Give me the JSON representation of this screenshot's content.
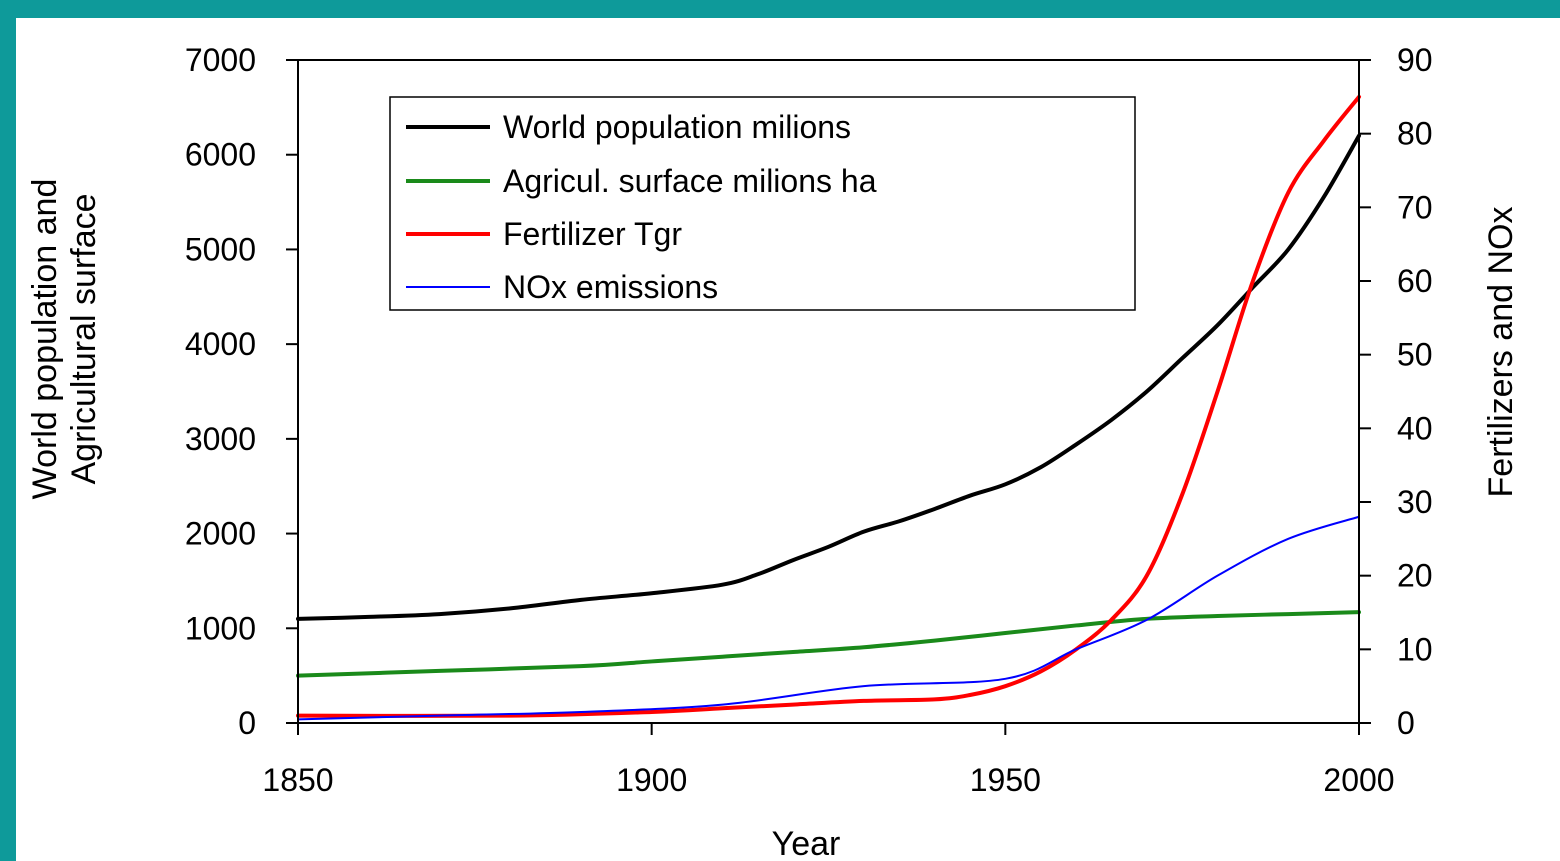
{
  "colors": {
    "frame": "#0e9a9a",
    "population": "#000000",
    "agricultural": "#1a8a1a",
    "fertilizer": "#ff0000",
    "nox": "#0000ff"
  },
  "chart_data": {
    "type": "line",
    "xlabel": "Year",
    "ylabel_left": [
      "World population and",
      "Agricultural surface"
    ],
    "ylabel_right": "Fertilizers and NOx",
    "xlim": [
      1850,
      2000
    ],
    "ylim_left": [
      0,
      7000
    ],
    "ylim_right": [
      0,
      90
    ],
    "x_ticks": [
      1850,
      1900,
      1950,
      2000
    ],
    "y_left_ticks": [
      0,
      1000,
      2000,
      3000,
      4000,
      5000,
      6000,
      7000
    ],
    "y_right_ticks": [
      0,
      10,
      20,
      30,
      40,
      50,
      60,
      70,
      80,
      90
    ],
    "legend_position": "top-left",
    "grid": false,
    "series": [
      {
        "name": "World population milions",
        "axis": "left",
        "color": "#000000",
        "x": [
          1850,
          1860,
          1870,
          1880,
          1890,
          1900,
          1910,
          1915,
          1920,
          1925,
          1930,
          1935,
          1940,
          1945,
          1950,
          1955,
          1960,
          1965,
          1970,
          1975,
          1980,
          1985,
          1990,
          1995,
          2000
        ],
        "y": [
          1100,
          1120,
          1150,
          1210,
          1300,
          1370,
          1460,
          1570,
          1720,
          1860,
          2020,
          2130,
          2260,
          2400,
          2520,
          2700,
          2940,
          3200,
          3500,
          3850,
          4200,
          4600,
          5000,
          5550,
          6200
        ]
      },
      {
        "name": "Agricul. surface milions ha",
        "axis": "left",
        "color": "#1a8a1a",
        "x": [
          1850,
          1870,
          1890,
          1900,
          1910,
          1920,
          1930,
          1940,
          1950,
          1960,
          1970,
          1980,
          1990,
          2000
        ],
        "y": [
          500,
          550,
          600,
          650,
          700,
          750,
          800,
          870,
          950,
          1030,
          1100,
          1130,
          1150,
          1170
        ]
      },
      {
        "name": "Fertilizer Tgr",
        "axis": "right",
        "color": "#ff0000",
        "x": [
          1850,
          1880,
          1900,
          1910,
          1920,
          1930,
          1940,
          1945,
          1950,
          1955,
          1960,
          1965,
          1970,
          1975,
          1980,
          1985,
          1990,
          1995,
          2000
        ],
        "y": [
          1,
          1,
          1.5,
          2,
          2.5,
          3,
          3.2,
          3.8,
          5,
          7,
          10,
          14,
          20,
          31,
          45,
          60,
          72,
          79,
          85
        ]
      },
      {
        "name": "NOx emissions",
        "axis": "right",
        "color": "#0000ff",
        "x": [
          1850,
          1870,
          1890,
          1910,
          1930,
          1950,
          1960,
          1970,
          1980,
          1990,
          2000
        ],
        "y": [
          0.5,
          1,
          1.5,
          2.5,
          5,
          6,
          10,
          14,
          20,
          25,
          28
        ]
      }
    ]
  }
}
